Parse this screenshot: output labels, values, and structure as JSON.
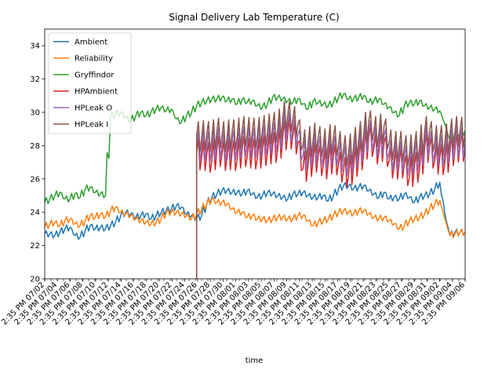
{
  "chart_data": {
    "type": "line",
    "title": "Signal Delivery Lab Temperature (C)",
    "xlabel": "time",
    "ylabel": "",
    "ylim": [
      20,
      35
    ],
    "yticks": [
      20,
      22,
      24,
      26,
      28,
      30,
      32,
      34
    ],
    "grid": false,
    "legend_position": "top-left",
    "x_tick_labels": [
      "2:35 PM 07/02",
      "2:35 PM 07/04",
      "2:35 PM 07/06",
      "2:35 PM 07/08",
      "2:35 PM 07/10",
      "2:35 PM 07/12",
      "2:35 PM 07/14",
      "2:35 PM 07/16",
      "2:35 PM 07/18",
      "2:35 PM 07/20",
      "2:35 PM 07/22",
      "2:35 PM 07/24",
      "2:35 PM 07/26",
      "2:35 PM 07/28",
      "2:35 PM 07/30",
      "2:35 PM 08/01",
      "2:35 PM 08/03",
      "2:35 PM 08/05",
      "2:35 PM 08/07",
      "2:35 PM 08/09",
      "2:35 PM 08/11",
      "2:35 PM 08/13",
      "2:35 PM 08/15",
      "2:35 PM 08/17",
      "2:35 PM 08/19",
      "2:35 PM 08/21",
      "2:35 PM 08/23",
      "2:35 PM 08/25",
      "2:35 PM 08/27",
      "2:35 PM 08/29",
      "2:35 PM 08/31",
      "2:35 PM 09/02",
      "2:35 PM 09/04",
      "2:35 PM 09/06"
    ],
    "series": [
      {
        "name": "Ambient",
        "color": "#1f77b4",
        "start": 0,
        "values": [
          22.7,
          22.7,
          22.6,
          22.8,
          23.0,
          23.1,
          22.6,
          22.5,
          22.9,
          23.2,
          23.0,
          23.1,
          23.0,
          23.2,
          23.4,
          23.8,
          24.0,
          23.9,
          23.7,
          23.8,
          23.9,
          23.6,
          23.8,
          24.0,
          24.1,
          24.2,
          24.4,
          24.3,
          23.9,
          23.8,
          23.6,
          23.8,
          24.5,
          24.9,
          25.1,
          25.3,
          25.3,
          25.2,
          25.2,
          25.1,
          25.3,
          25.1,
          24.9,
          25.0,
          25.2,
          25.1,
          25.0,
          24.9,
          24.8,
          25.1,
          25.1,
          25.2,
          25.0,
          24.9,
          24.9,
          25.0,
          24.7,
          25.0,
          25.4,
          25.6,
          25.6,
          25.4,
          25.5,
          25.6,
          25.3,
          25.1,
          24.9,
          25.2,
          24.8,
          24.9,
          24.8,
          25.1,
          24.9,
          24.6,
          24.9,
          25.0,
          25.1,
          25.4,
          25.8,
          23.9,
          22.6,
          22.8,
          22.8,
          22.8
        ]
      },
      {
        "name": "Reliability",
        "color": "#ff7f0e",
        "start": 0,
        "values": [
          23.1,
          23.3,
          23.4,
          23.2,
          23.5,
          23.6,
          23.3,
          23.2,
          23.5,
          23.8,
          23.7,
          23.9,
          23.7,
          24.1,
          24.3,
          24.0,
          23.9,
          23.8,
          23.6,
          23.5,
          23.4,
          23.3,
          23.4,
          23.6,
          24.0,
          24.0,
          24.0,
          23.9,
          23.8,
          23.6,
          23.9,
          24.2,
          24.5,
          24.8,
          24.6,
          24.6,
          24.5,
          24.2,
          24.0,
          24.0,
          23.7,
          23.8,
          23.6,
          23.6,
          23.5,
          23.6,
          23.7,
          23.7,
          23.6,
          23.6,
          23.8,
          23.8,
          23.5,
          23.2,
          23.4,
          23.5,
          23.6,
          23.8,
          24.0,
          24.1,
          24.0,
          23.9,
          24.1,
          24.1,
          23.9,
          23.7,
          23.6,
          23.7,
          23.5,
          23.3,
          23.0,
          23.2,
          23.5,
          23.6,
          23.7,
          23.9,
          24.2,
          24.5,
          24.7,
          23.6,
          22.6,
          22.7,
          22.8,
          22.8
        ]
      },
      {
        "name": "Gryffindor",
        "color": "#2ca02c",
        "start": 0,
        "values": [
          24.6,
          24.8,
          25.0,
          25.2,
          24.8,
          24.8,
          25.1,
          24.9,
          25.4,
          25.5,
          25.2,
          25.1,
          25.0,
          29.8,
          29.9,
          30.0,
          29.7,
          29.5,
          29.8,
          30.0,
          29.8,
          30.0,
          30.2,
          30.3,
          30.1,
          30.2,
          29.6,
          29.4,
          29.8,
          30.0,
          30.4,
          30.6,
          30.7,
          30.8,
          30.8,
          30.9,
          30.7,
          30.8,
          30.5,
          30.8,
          30.6,
          30.7,
          30.4,
          30.3,
          30.5,
          30.9,
          30.9,
          30.8,
          30.7,
          30.6,
          30.8,
          30.5,
          30.2,
          30.7,
          30.6,
          30.5,
          30.4,
          30.6,
          30.9,
          31.1,
          30.8,
          30.8,
          30.9,
          31.0,
          30.6,
          30.7,
          30.8,
          30.5,
          30.3,
          30.0,
          29.8,
          30.4,
          30.6,
          30.5,
          30.7,
          30.4,
          30.3,
          30.2,
          30.1,
          29.3,
          28.3,
          28.8,
          28.7,
          28.9
        ]
      },
      {
        "name": "HPAmbient",
        "color": "#d62728",
        "start": 30,
        "values": [
          27.6,
          27.3,
          27.5,
          27.1,
          27.8,
          27.5,
          27.3,
          27.6,
          27.2,
          27.9,
          27.4,
          27.7,
          27.3,
          27.8,
          27.6,
          28.0,
          27.8,
          28.5,
          28.8,
          28.6,
          28.2,
          26.6,
          26.9,
          27.2,
          27.4,
          26.8,
          27.0,
          27.4,
          26.9,
          26.5,
          26.3,
          26.8,
          27.3,
          27.6,
          28.6,
          27.9,
          27.7,
          28.2,
          27.1,
          26.8,
          27.0,
          26.9,
          26.1,
          26.8,
          26.6,
          27.8,
          28.0,
          27.1,
          27.3,
          27.0,
          27.6,
          27.8,
          28.0,
          27.9
        ]
      },
      {
        "name": "HPLeak O",
        "color": "#9467bd",
        "start": 30,
        "values": [
          28.0,
          27.9,
          28.1,
          27.8,
          28.3,
          28.0,
          27.9,
          28.2,
          27.9,
          28.4,
          28.1,
          28.3,
          28.0,
          28.4,
          28.2,
          28.6,
          28.4,
          29.0,
          29.3,
          29.0,
          28.7,
          27.4,
          27.5,
          27.8,
          27.9,
          27.4,
          27.6,
          27.9,
          27.5,
          27.2,
          27.0,
          27.4,
          27.8,
          28.1,
          28.9,
          28.3,
          28.2,
          28.6,
          27.6,
          27.3,
          27.4,
          27.3,
          26.9,
          27.4,
          27.3,
          28.2,
          28.3,
          27.6,
          27.8,
          27.6,
          28.0,
          28.2,
          28.3,
          28.1
        ]
      },
      {
        "name": "HPLeak I",
        "color": "#8c564b",
        "start": 30,
        "values": [
          28.6,
          28.5,
          28.7,
          28.4,
          28.9,
          28.6,
          28.5,
          28.8,
          28.5,
          29.0,
          28.7,
          28.9,
          28.6,
          29.0,
          28.8,
          29.2,
          29.0,
          29.6,
          29.9,
          29.6,
          29.3,
          28.0,
          28.1,
          28.4,
          28.5,
          28.0,
          28.2,
          28.5,
          28.1,
          27.8,
          27.6,
          28.0,
          28.4,
          28.7,
          29.5,
          28.9,
          28.8,
          29.2,
          28.2,
          27.9,
          28.0,
          27.9,
          27.5,
          28.0,
          27.9,
          28.8,
          28.9,
          28.2,
          28.4,
          28.2,
          28.6,
          28.8,
          28.9,
          28.7
        ]
      }
    ]
  }
}
